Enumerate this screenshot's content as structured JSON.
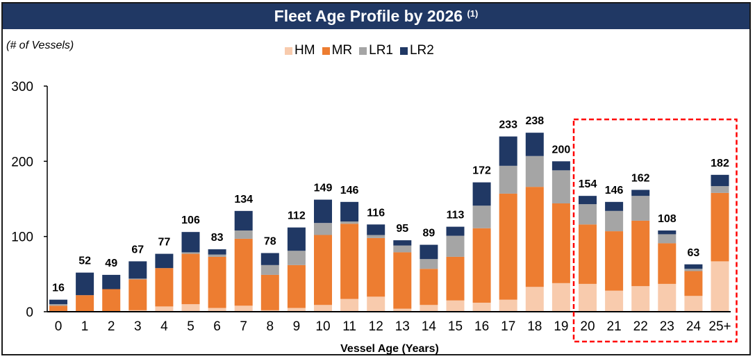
{
  "header": {
    "title": "Fleet Age Profile by 2026",
    "footnote_marker": "(1)"
  },
  "units_label": "(# of Vessels)",
  "highlight_note": "Ages 20 to 25+ highlighted with red dashed box",
  "chart_data": {
    "type": "bar",
    "stacked": true,
    "title": "Fleet Age Profile by 2026 (1)",
    "xlabel": "Vessel Age (Years)",
    "ylabel": "(# of Vessels)",
    "ylim": [
      0,
      300
    ],
    "yticks": [
      0,
      100,
      200,
      300
    ],
    "grid": false,
    "legend_position": "top-center",
    "categories": [
      "0",
      "1",
      "2",
      "3",
      "4",
      "5",
      "6",
      "7",
      "8",
      "9",
      "10",
      "11",
      "12",
      "13",
      "14",
      "15",
      "16",
      "17",
      "18",
      "19",
      "20",
      "21",
      "22",
      "23",
      "24",
      "25+"
    ],
    "series": [
      {
        "name": "HM",
        "color": "#F8CBAD",
        "values": [
          1,
          0,
          0,
          2,
          7,
          10,
          5,
          8,
          2,
          5,
          9,
          17,
          20,
          4,
          9,
          15,
          12,
          16,
          33,
          38,
          37,
          28,
          34,
          37,
          21,
          67
        ]
      },
      {
        "name": "MR",
        "color": "#ED7D31",
        "values": [
          7,
          22,
          30,
          41,
          51,
          67,
          68,
          89,
          47,
          57,
          93,
          100,
          78,
          75,
          48,
          58,
          99,
          141,
          133,
          106,
          79,
          79,
          87,
          54,
          33,
          91
        ]
      },
      {
        "name": "LR1",
        "color": "#A5A5A5",
        "values": [
          2,
          0,
          0,
          1,
          0,
          2,
          3,
          11,
          13,
          19,
          16,
          3,
          4,
          9,
          13,
          28,
          30,
          37,
          41,
          44,
          27,
          27,
          33,
          12,
          3,
          9
        ]
      },
      {
        "name": "LR2",
        "color": "#203864",
        "values": [
          6,
          30,
          19,
          23,
          19,
          27,
          7,
          26,
          16,
          31,
          31,
          26,
          14,
          7,
          19,
          12,
          31,
          39,
          31,
          12,
          11,
          12,
          8,
          5,
          6,
          15
        ]
      }
    ],
    "totals": [
      16,
      52,
      49,
      67,
      77,
      106,
      83,
      134,
      78,
      112,
      149,
      146,
      116,
      95,
      89,
      113,
      172,
      233,
      238,
      200,
      154,
      146,
      162,
      108,
      63,
      182
    ],
    "highlight": {
      "from": "20",
      "to": "25+",
      "style": "red-dashed-box",
      "color": "#FF0000"
    }
  }
}
